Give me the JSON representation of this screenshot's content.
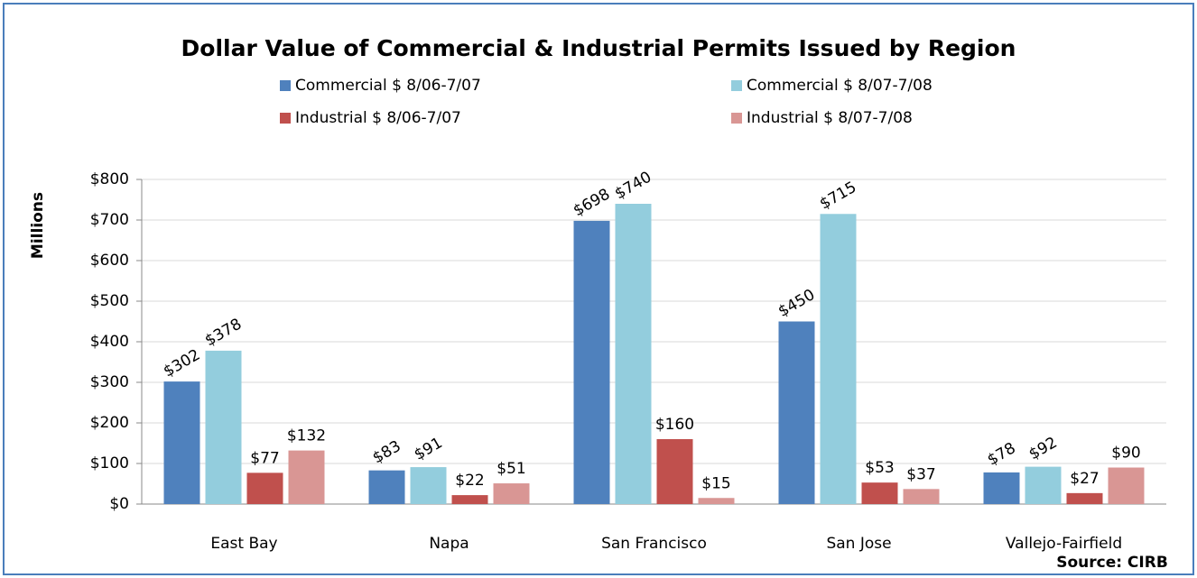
{
  "chart_data": {
    "type": "bar",
    "title": "Dollar Value of Commercial & Industrial Permits Issued by Region",
    "y_label": "Millions",
    "source": "Source: CIRB",
    "categories": [
      "East Bay",
      "Napa",
      "San Francisco",
      "San Jose",
      "Vallejo-Fairfield"
    ],
    "series": [
      {
        "name": "Commercial $ 8/06-7/07",
        "color": "#4f81bd",
        "values": [
          302,
          83,
          698,
          450,
          78
        ],
        "value_labels": [
          "$302",
          "$83",
          "$698",
          "$450",
          "$78"
        ]
      },
      {
        "name": "Commercial $ 8/07-7/08",
        "color": "#93cddd",
        "values": [
          378,
          91,
          740,
          715,
          92
        ],
        "value_labels": [
          "$378",
          "$91",
          "$740",
          "$715",
          "$92"
        ]
      },
      {
        "name": "Industrial $ 8/06-7/07",
        "color": "#c0504d",
        "values": [
          77,
          22,
          160,
          53,
          27
        ],
        "value_labels": [
          "$77",
          "$22",
          "$160",
          "$53",
          "$27"
        ]
      },
      {
        "name": "Industrial $ 8/07-7/08",
        "color": "#d99694",
        "values": [
          132,
          51,
          15,
          37,
          90
        ],
        "value_labels": [
          "$132",
          "$51",
          "$15",
          "$37",
          "$90"
        ]
      }
    ],
    "ylim": [
      0,
      800
    ],
    "yticks": [
      {
        "value": 0,
        "label": "$0"
      },
      {
        "value": 100,
        "label": "$100"
      },
      {
        "value": 200,
        "label": "$200"
      },
      {
        "value": 300,
        "label": "$300"
      },
      {
        "value": 400,
        "label": "$400"
      },
      {
        "value": 500,
        "label": "$500"
      },
      {
        "value": 600,
        "label": "$600"
      },
      {
        "value": 700,
        "label": "$700"
      },
      {
        "value": 800,
        "label": "$800"
      }
    ],
    "grid": true
  }
}
